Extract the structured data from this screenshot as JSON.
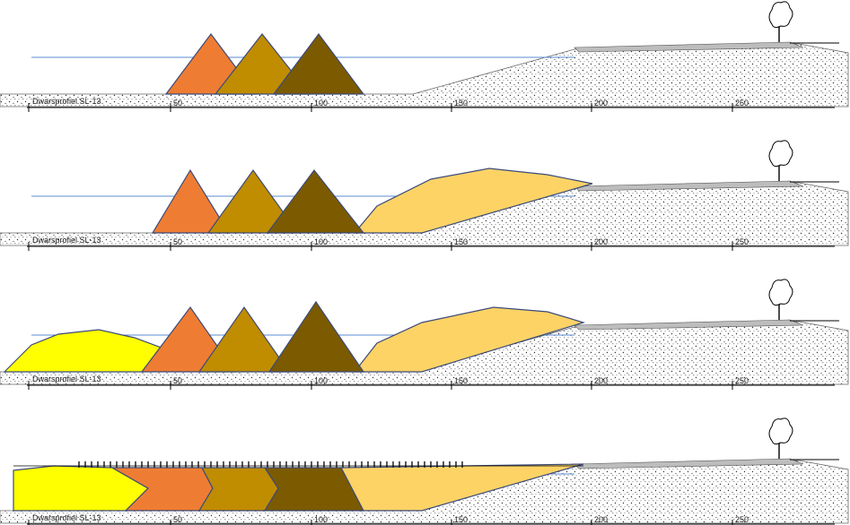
{
  "panels": [
    {
      "label": "Dwarsprofiel SL-13"
    },
    {
      "label": "Dwarsprofiel SL-13"
    },
    {
      "label": "Dwarsprofiel SL-13"
    },
    {
      "label": "Dwarsprofiel SL-13"
    }
  ],
  "axis_labels": [
    "50",
    "100",
    "150",
    "200",
    "250"
  ]
}
